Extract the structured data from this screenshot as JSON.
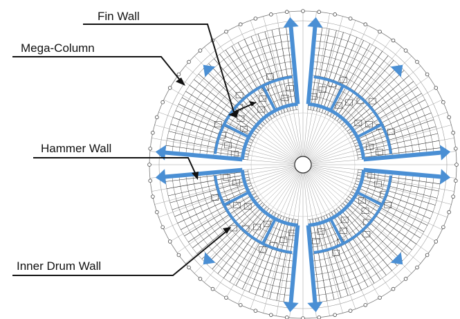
{
  "labels": {
    "fin_wall": "Fin Wall",
    "mega_column": "Mega-Column",
    "hammer_wall": "Hammer Wall",
    "inner_drum_wall": "Inner Drum Wall"
  },
  "colors": {
    "structure_blue": "#4a8fd4",
    "line_black": "#111111",
    "drawing_gray": "#555555"
  }
}
